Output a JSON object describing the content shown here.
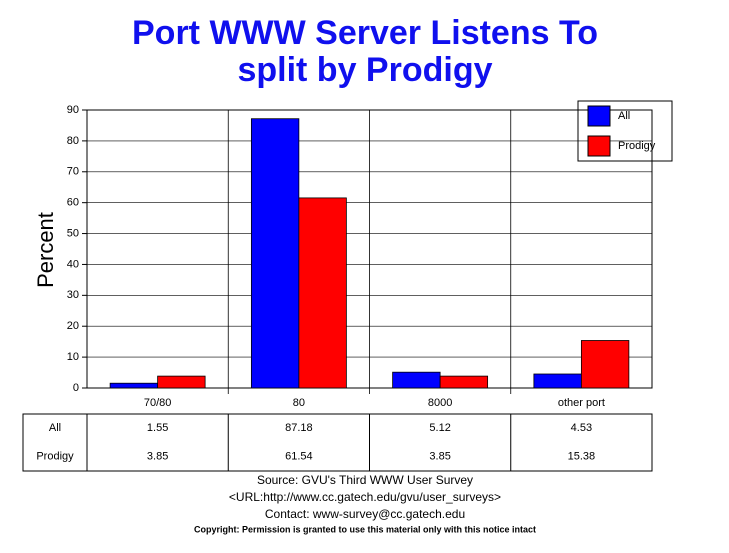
{
  "chart_data": {
    "type": "bar",
    "title": "Port WWW Server Listens To",
    "subtitle": "split by Prodigy",
    "y_label": "Percent",
    "categories": [
      "70/80",
      "80",
      "8000",
      "other port"
    ],
    "series": [
      {
        "name": "All",
        "color": "#0000ff",
        "values": [
          1.55,
          87.18,
          5.12,
          4.53
        ]
      },
      {
        "name": "Prodigy",
        "color": "#ff0000",
        "values": [
          3.85,
          61.54,
          3.85,
          15.38
        ]
      }
    ],
    "ylim": [
      0,
      90
    ],
    "yticks": [
      0,
      10,
      20,
      30,
      40,
      50,
      60,
      70,
      80,
      90
    ],
    "grid": true,
    "legend": "top-right",
    "footer": [
      "Source: GVU's Third WWW User Survey",
      "<URL:http://www.cc.gatech.edu/gvu/user_surveys>",
      "Contact: www-survey@cc.gatech.edu"
    ],
    "copyright": "Copyright: Permission is granted to use this material only with this notice intact"
  }
}
